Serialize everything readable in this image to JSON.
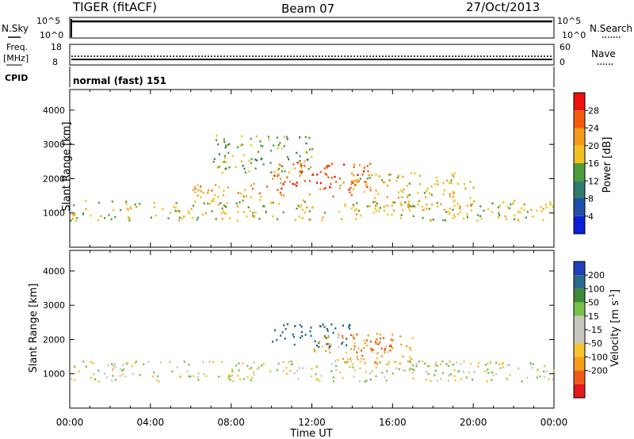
{
  "header": {
    "radar": "TIGER (fitACF)",
    "beam": "Beam 07",
    "date": "27/Oct/2013"
  },
  "nsky_panel": {
    "left_label": "N.Sky",
    "right_label": "N.Search",
    "left_ticks": [
      "10^5",
      "10^0"
    ],
    "right_ticks": [
      "10^5",
      "10^0"
    ]
  },
  "freq_panel": {
    "left_label_line1": "Freq.",
    "left_label_line2": "[MHz]",
    "right_label": "Nave",
    "left_ticks": [
      "18",
      "8"
    ],
    "right_ticks": [
      "60",
      "0"
    ]
  },
  "cpid_panel": {
    "label": "CPID",
    "value": "normal (fast) 151"
  },
  "colors": {
    "power_scale": [
      "#0a1fd6",
      "#1f4fa8",
      "#2f7d6d",
      "#4f9c3c",
      "#f0c020",
      "#f59a1a",
      "#f45a10",
      "#f01010"
    ],
    "velocity_scale": [
      "#e41a1c",
      "#f05a1a",
      "#f59c1a",
      "#f7c230",
      "#c8c8c0",
      "#c8c8c0",
      "#76c24a",
      "#3d8a3a",
      "#2a6a8a",
      "#1f3fbf"
    ],
    "velocity_ground": "#c8c8c0"
  },
  "chart_data": [
    {
      "type": "heatmap",
      "title": "Power",
      "ylabel": "Slant Range [km]",
      "xlabel": "Time UT",
      "x_ticks": [
        "00:00",
        "04:00",
        "08:00",
        "12:00",
        "16:00",
        "20:00",
        "00:00"
      ],
      "x_range_hours": [
        0,
        24
      ],
      "ylim": [
        0,
        4600
      ],
      "y_ticks": [
        1000,
        2000,
        3000,
        4000
      ],
      "colorbar": {
        "label": "Power [dB]",
        "ticks": [
          4,
          8,
          12,
          16,
          20,
          24,
          28
        ],
        "range": [
          0,
          32
        ]
      },
      "regions": [
        {
          "t": [
            0,
            24
          ],
          "r": [
            800,
            1400
          ],
          "v": 17
        },
        {
          "t": [
            6,
            10
          ],
          "r": [
            1400,
            1900
          ],
          "v": 21
        },
        {
          "t": [
            10,
            15
          ],
          "r": [
            1500,
            2500
          ],
          "v": 26
        },
        {
          "t": [
            14,
            20
          ],
          "r": [
            1200,
            2200
          ],
          "v": 19
        },
        {
          "t": [
            7,
            12
          ],
          "r": [
            2200,
            3300
          ],
          "v": 15
        }
      ]
    },
    {
      "type": "heatmap",
      "title": "Velocity",
      "ylabel": "Slant Range [km]",
      "xlabel": "Time UT",
      "x_ticks": [
        "00:00",
        "04:00",
        "08:00",
        "12:00",
        "16:00",
        "20:00",
        "00:00"
      ],
      "x_range_hours": [
        0,
        24
      ],
      "ylim": [
        0,
        4600
      ],
      "y_ticks": [
        1000,
        2000,
        3000,
        4000
      ],
      "colorbar": {
        "label": "Velocity [m s^-1]",
        "ticks": [
          200,
          100,
          50,
          15,
          -15,
          -50,
          -100,
          -200
        ],
        "range": [
          -250,
          250
        ]
      },
      "regions": [
        {
          "t": [
            0,
            24
          ],
          "r": [
            800,
            1400
          ],
          "v": 0
        },
        {
          "t": [
            10,
            14
          ],
          "r": [
            1800,
            2500
          ],
          "v": 150
        },
        {
          "t": [
            12,
            17
          ],
          "r": [
            1300,
            2200
          ],
          "v": -60
        },
        {
          "t": [
            14,
            16
          ],
          "r": [
            1600,
            2100
          ],
          "v": -150
        }
      ]
    }
  ],
  "axes": {
    "xlabel": "Time UT"
  }
}
